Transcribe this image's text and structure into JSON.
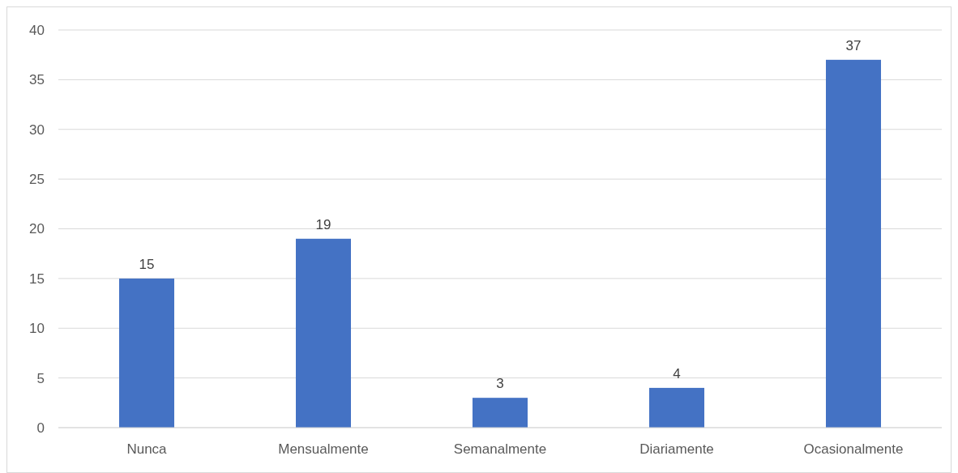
{
  "chart_data": {
    "type": "bar",
    "categories": [
      "Nunca",
      "Mensualmente",
      "Semanalmente",
      "Diariamente",
      "Ocasionalmente"
    ],
    "values": [
      15,
      19,
      3,
      4,
      37
    ],
    "color": "#4472c4",
    "ylim": [
      0,
      40
    ],
    "yticks": [
      0,
      5,
      10,
      15,
      20,
      25,
      30,
      35,
      40
    ],
    "grid": "y",
    "data_labels": true
  }
}
